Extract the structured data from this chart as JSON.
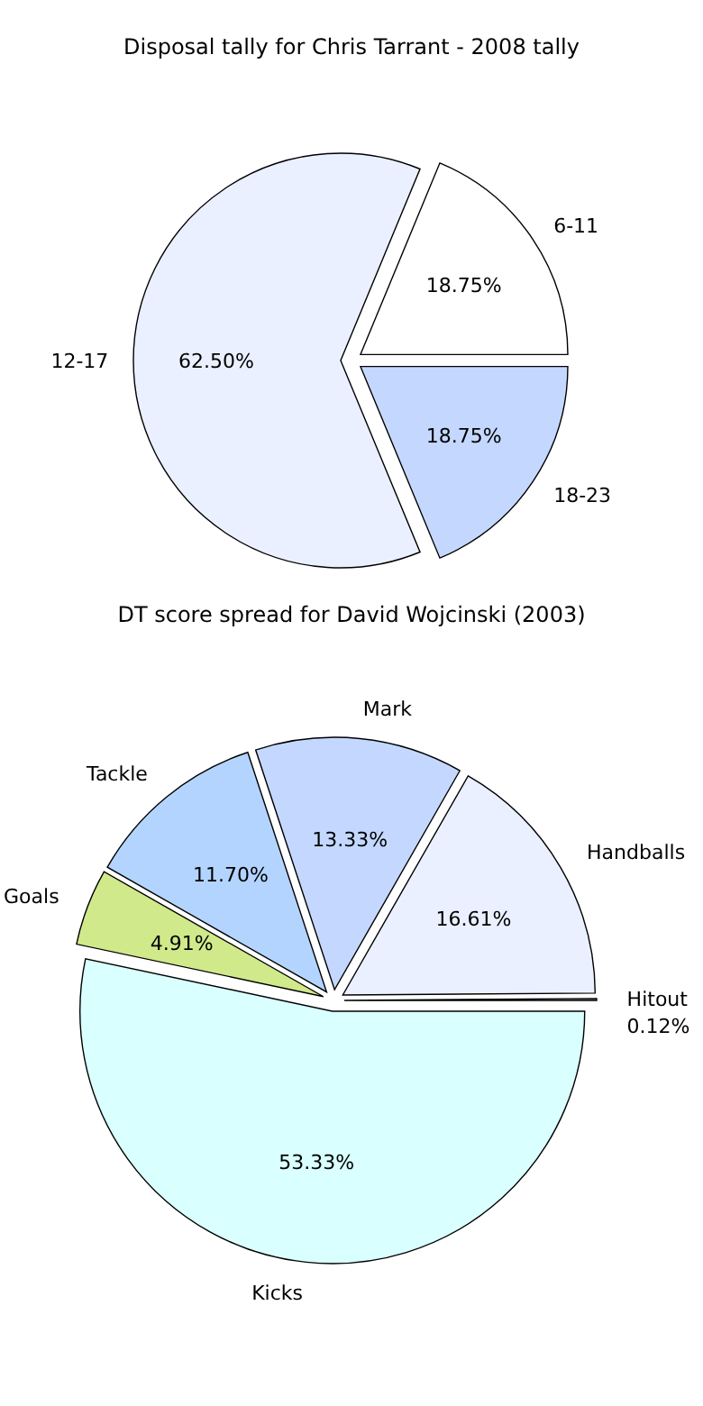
{
  "chart_data": [
    {
      "type": "pie",
      "title": "Disposal tally for Chris Tarrant - 2008 tally",
      "categories": [
        "6-11",
        "12-17",
        "18-23"
      ],
      "values": [
        18.75,
        62.5,
        18.75
      ],
      "value_labels": [
        "18.75%",
        "62.50%",
        "18.75%"
      ],
      "colors": [
        "#ffffff",
        "#eaf0ff",
        "#c4d8ff"
      ]
    },
    {
      "type": "pie",
      "title": "DT score spread for David Wojcinski (2003)",
      "categories": [
        "Hitout",
        "Handballs",
        "Mark",
        "Tackle",
        "Goals",
        "Kicks"
      ],
      "values": [
        0.12,
        16.61,
        13.33,
        11.7,
        4.91,
        53.33
      ],
      "value_labels": [
        "0.12%",
        "16.61%",
        "13.33%",
        "11.70%",
        "4.91%",
        "53.33%"
      ],
      "colors": [
        "#b0b0b0",
        "#eaf0ff",
        "#c4d8ff",
        "#b3d4ff",
        "#d0e98b",
        "#d9ffff"
      ]
    }
  ]
}
